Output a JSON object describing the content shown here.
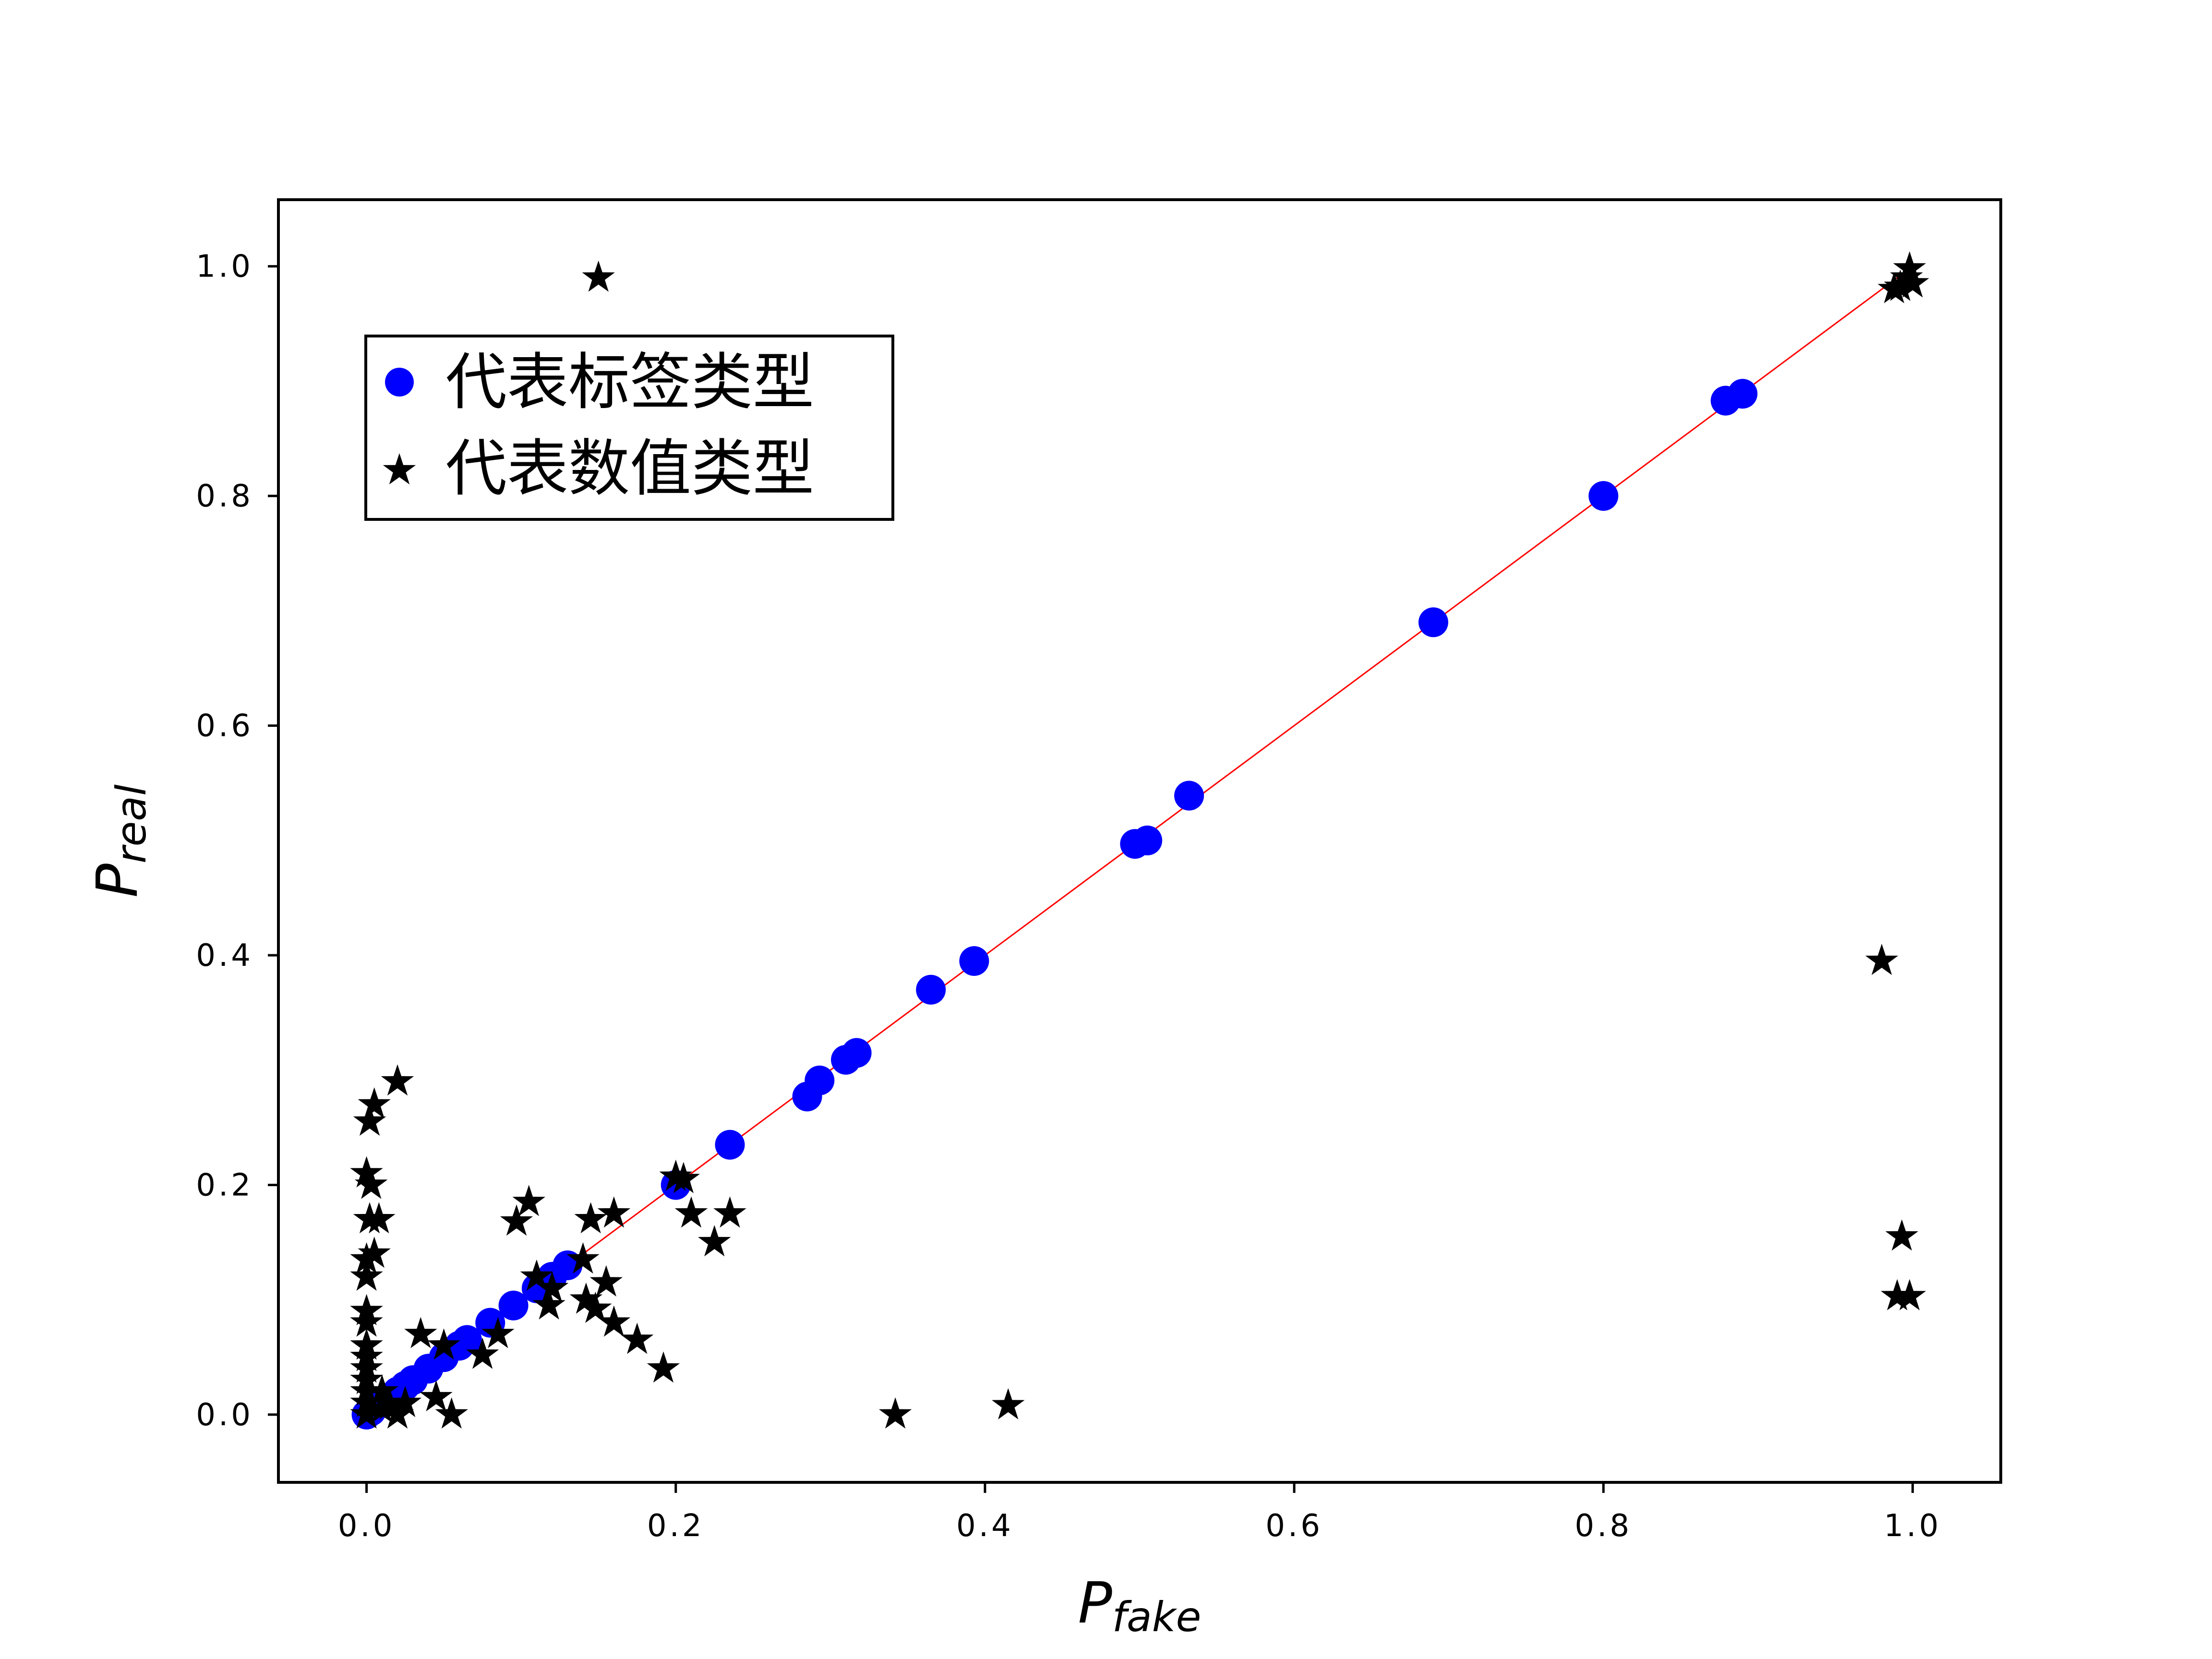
{
  "chart_data": {
    "type": "scatter",
    "title": "",
    "xlabel": {
      "main": "P",
      "sub": "fake"
    },
    "ylabel": {
      "main": "P",
      "sub": "real"
    },
    "xlim": [
      -0.057,
      1.057
    ],
    "ylim": [
      -0.059,
      1.058
    ],
    "x_ticks": [
      {
        "value": 0.0,
        "label": "0.0"
      },
      {
        "value": 0.2,
        "label": "0.2"
      },
      {
        "value": 0.4,
        "label": "0.4"
      },
      {
        "value": 0.6,
        "label": "0.6"
      },
      {
        "value": 0.8,
        "label": "0.8"
      },
      {
        "value": 1.0,
        "label": "1.0"
      }
    ],
    "y_ticks": [
      {
        "value": 0.0,
        "label": "0.0"
      },
      {
        "value": 0.2,
        "label": "0.2"
      },
      {
        "value": 0.4,
        "label": "0.4"
      },
      {
        "value": 0.6,
        "label": "0.6"
      },
      {
        "value": 0.8,
        "label": "0.8"
      },
      {
        "value": 1.0,
        "label": "1.0"
      }
    ],
    "reference_line": {
      "from": [
        0,
        0
      ],
      "to": [
        1,
        1
      ],
      "color": "#ff0000"
    },
    "legend": {
      "position": "upper-left"
    },
    "series": [
      {
        "name": "代表标签类型",
        "marker": "circle",
        "color": "#0000ff",
        "points": [
          [
            0.0,
            0.0
          ],
          [
            0.003,
            0.003
          ],
          [
            0.01,
            0.01
          ],
          [
            0.015,
            0.015
          ],
          [
            0.02,
            0.02
          ],
          [
            0.025,
            0.025
          ],
          [
            0.03,
            0.03
          ],
          [
            0.04,
            0.04
          ],
          [
            0.05,
            0.05
          ],
          [
            0.06,
            0.06
          ],
          [
            0.065,
            0.065
          ],
          [
            0.08,
            0.08
          ],
          [
            0.095,
            0.095
          ],
          [
            0.11,
            0.11
          ],
          [
            0.12,
            0.12
          ],
          [
            0.13,
            0.13
          ],
          [
            0.2,
            0.2
          ],
          [
            0.235,
            0.235
          ],
          [
            0.285,
            0.277
          ],
          [
            0.293,
            0.291
          ],
          [
            0.31,
            0.309
          ],
          [
            0.317,
            0.315
          ],
          [
            0.365,
            0.37
          ],
          [
            0.393,
            0.395
          ],
          [
            0.497,
            0.497
          ],
          [
            0.505,
            0.5
          ],
          [
            0.532,
            0.539
          ],
          [
            0.69,
            0.69
          ],
          [
            0.8,
            0.8
          ],
          [
            0.879,
            0.883
          ],
          [
            0.89,
            0.889
          ]
        ]
      },
      {
        "name": "代表数值类型",
        "marker": "star",
        "color": "#000000",
        "points": [
          [
            0.0,
            0.0
          ],
          [
            0.0,
            0.01
          ],
          [
            0.0,
            0.02
          ],
          [
            0.0,
            0.03
          ],
          [
            0.0,
            0.04
          ],
          [
            0.0,
            0.05
          ],
          [
            0.0,
            0.06
          ],
          [
            0.0,
            0.08
          ],
          [
            0.0,
            0.09
          ],
          [
            0.0,
            0.12
          ],
          [
            0.0,
            0.135
          ],
          [
            0.002,
            0.17
          ],
          [
            0.0,
            0.21
          ],
          [
            0.002,
            0.255
          ],
          [
            0.005,
            0.27
          ],
          [
            0.01,
            0.005
          ],
          [
            0.02,
            0.29
          ],
          [
            0.008,
            0.17
          ],
          [
            0.005,
            0.14
          ],
          [
            0.003,
            0.2
          ],
          [
            0.01,
            0.02
          ],
          [
            0.015,
            0.008
          ],
          [
            0.02,
            0.0
          ],
          [
            0.025,
            0.01
          ],
          [
            0.035,
            0.07
          ],
          [
            0.045,
            0.015
          ],
          [
            0.05,
            0.06
          ],
          [
            0.055,
            0.0
          ],
          [
            0.075,
            0.052
          ],
          [
            0.085,
            0.07
          ],
          [
            0.097,
            0.168
          ],
          [
            0.105,
            0.185
          ],
          [
            0.11,
            0.12
          ],
          [
            0.118,
            0.095
          ],
          [
            0.12,
            0.11
          ],
          [
            0.14,
            0.135
          ],
          [
            0.142,
            0.1
          ],
          [
            0.145,
            0.17
          ],
          [
            0.148,
            0.092
          ],
          [
            0.155,
            0.115
          ],
          [
            0.16,
            0.08
          ],
          [
            0.16,
            0.175
          ],
          [
            0.175,
            0.065
          ],
          [
            0.192,
            0.04
          ],
          [
            0.2,
            0.207
          ],
          [
            0.205,
            0.205
          ],
          [
            0.21,
            0.175
          ],
          [
            0.225,
            0.15
          ],
          [
            0.235,
            0.175
          ],
          [
            0.15,
            0.99
          ],
          [
            0.342,
            0.0
          ],
          [
            0.415,
            0.008
          ],
          [
            0.98,
            0.395
          ],
          [
            0.99,
            0.103
          ],
          [
            0.998,
            0.103
          ],
          [
            0.993,
            0.155
          ],
          [
            0.988,
            0.98
          ],
          [
            0.992,
            0.982
          ],
          [
            0.996,
            0.99
          ],
          [
            0.998,
            0.998
          ],
          [
            1.0,
            0.985
          ]
        ]
      }
    ]
  }
}
